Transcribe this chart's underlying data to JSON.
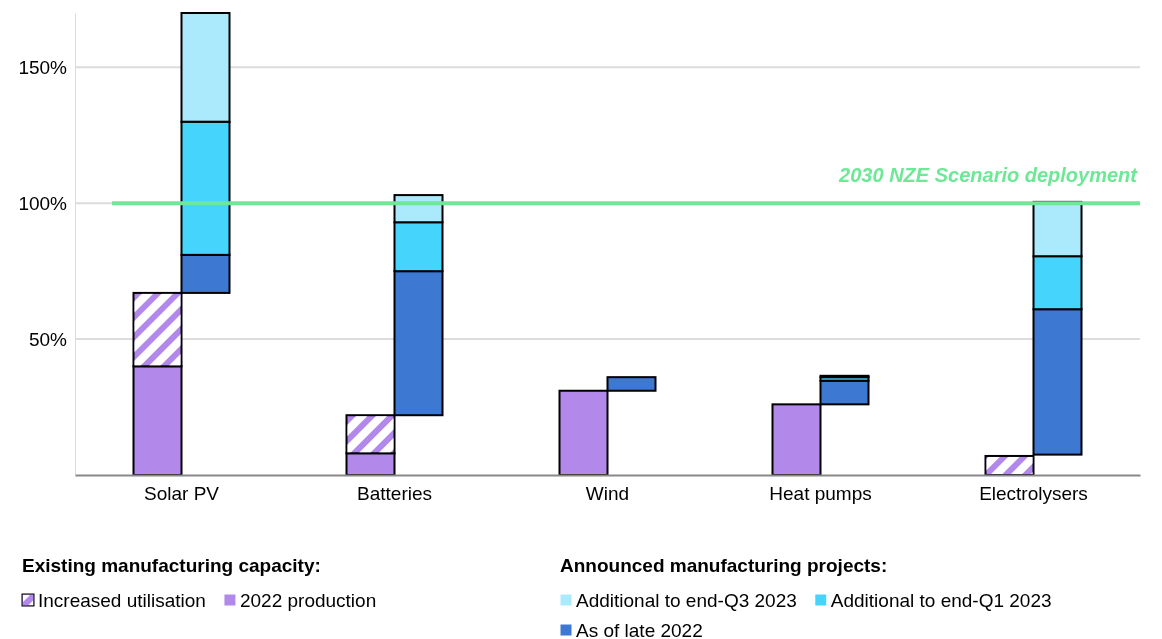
{
  "chart_data": {
    "type": "bar",
    "stacked": true,
    "categories": [
      "Solar PV",
      "Batteries",
      "Wind",
      "Heat pumps",
      "Electrolysers"
    ],
    "series": [
      {
        "name": "2022 production",
        "color": "#b388eb",
        "values": [
          40,
          8,
          31,
          26,
          null
        ]
      },
      {
        "name": "Increased utilisation",
        "color": "#b388eb",
        "values": [
          27,
          14,
          0,
          0,
          7
        ]
      },
      {
        "name": "As of late 2022",
        "color": "#3d78d3",
        "base": [
          67,
          22,
          31,
          26,
          7.5
        ],
        "values": [
          14,
          53,
          5,
          8.7,
          53.5
        ]
      },
      {
        "name": "Additional to end-Q1 2023",
        "color": "#45d4fc",
        "values": [
          49,
          18,
          0,
          1.3,
          19.5
        ]
      },
      {
        "name": "Additional to end-Q3 2023",
        "color": "#abe9fd",
        "values": [
          40,
          10,
          0,
          0.5,
          20
        ]
      }
    ],
    "ylim": [
      0,
      170
    ],
    "yticks": [
      {
        "value": 50,
        "label": "50%"
      },
      {
        "value": 100,
        "label": "100%"
      },
      {
        "value": 150,
        "label": "150%"
      }
    ],
    "grid": "y",
    "legend": "bottom",
    "ref_lines": [
      {
        "axis": "y",
        "value": 100,
        "label": "2030 NZE Scenario deployment",
        "color": "#6ee896"
      }
    ],
    "annotations": [
      "Existing manufacturing capacity:",
      "Announced manufacturing projects:"
    ]
  }
}
